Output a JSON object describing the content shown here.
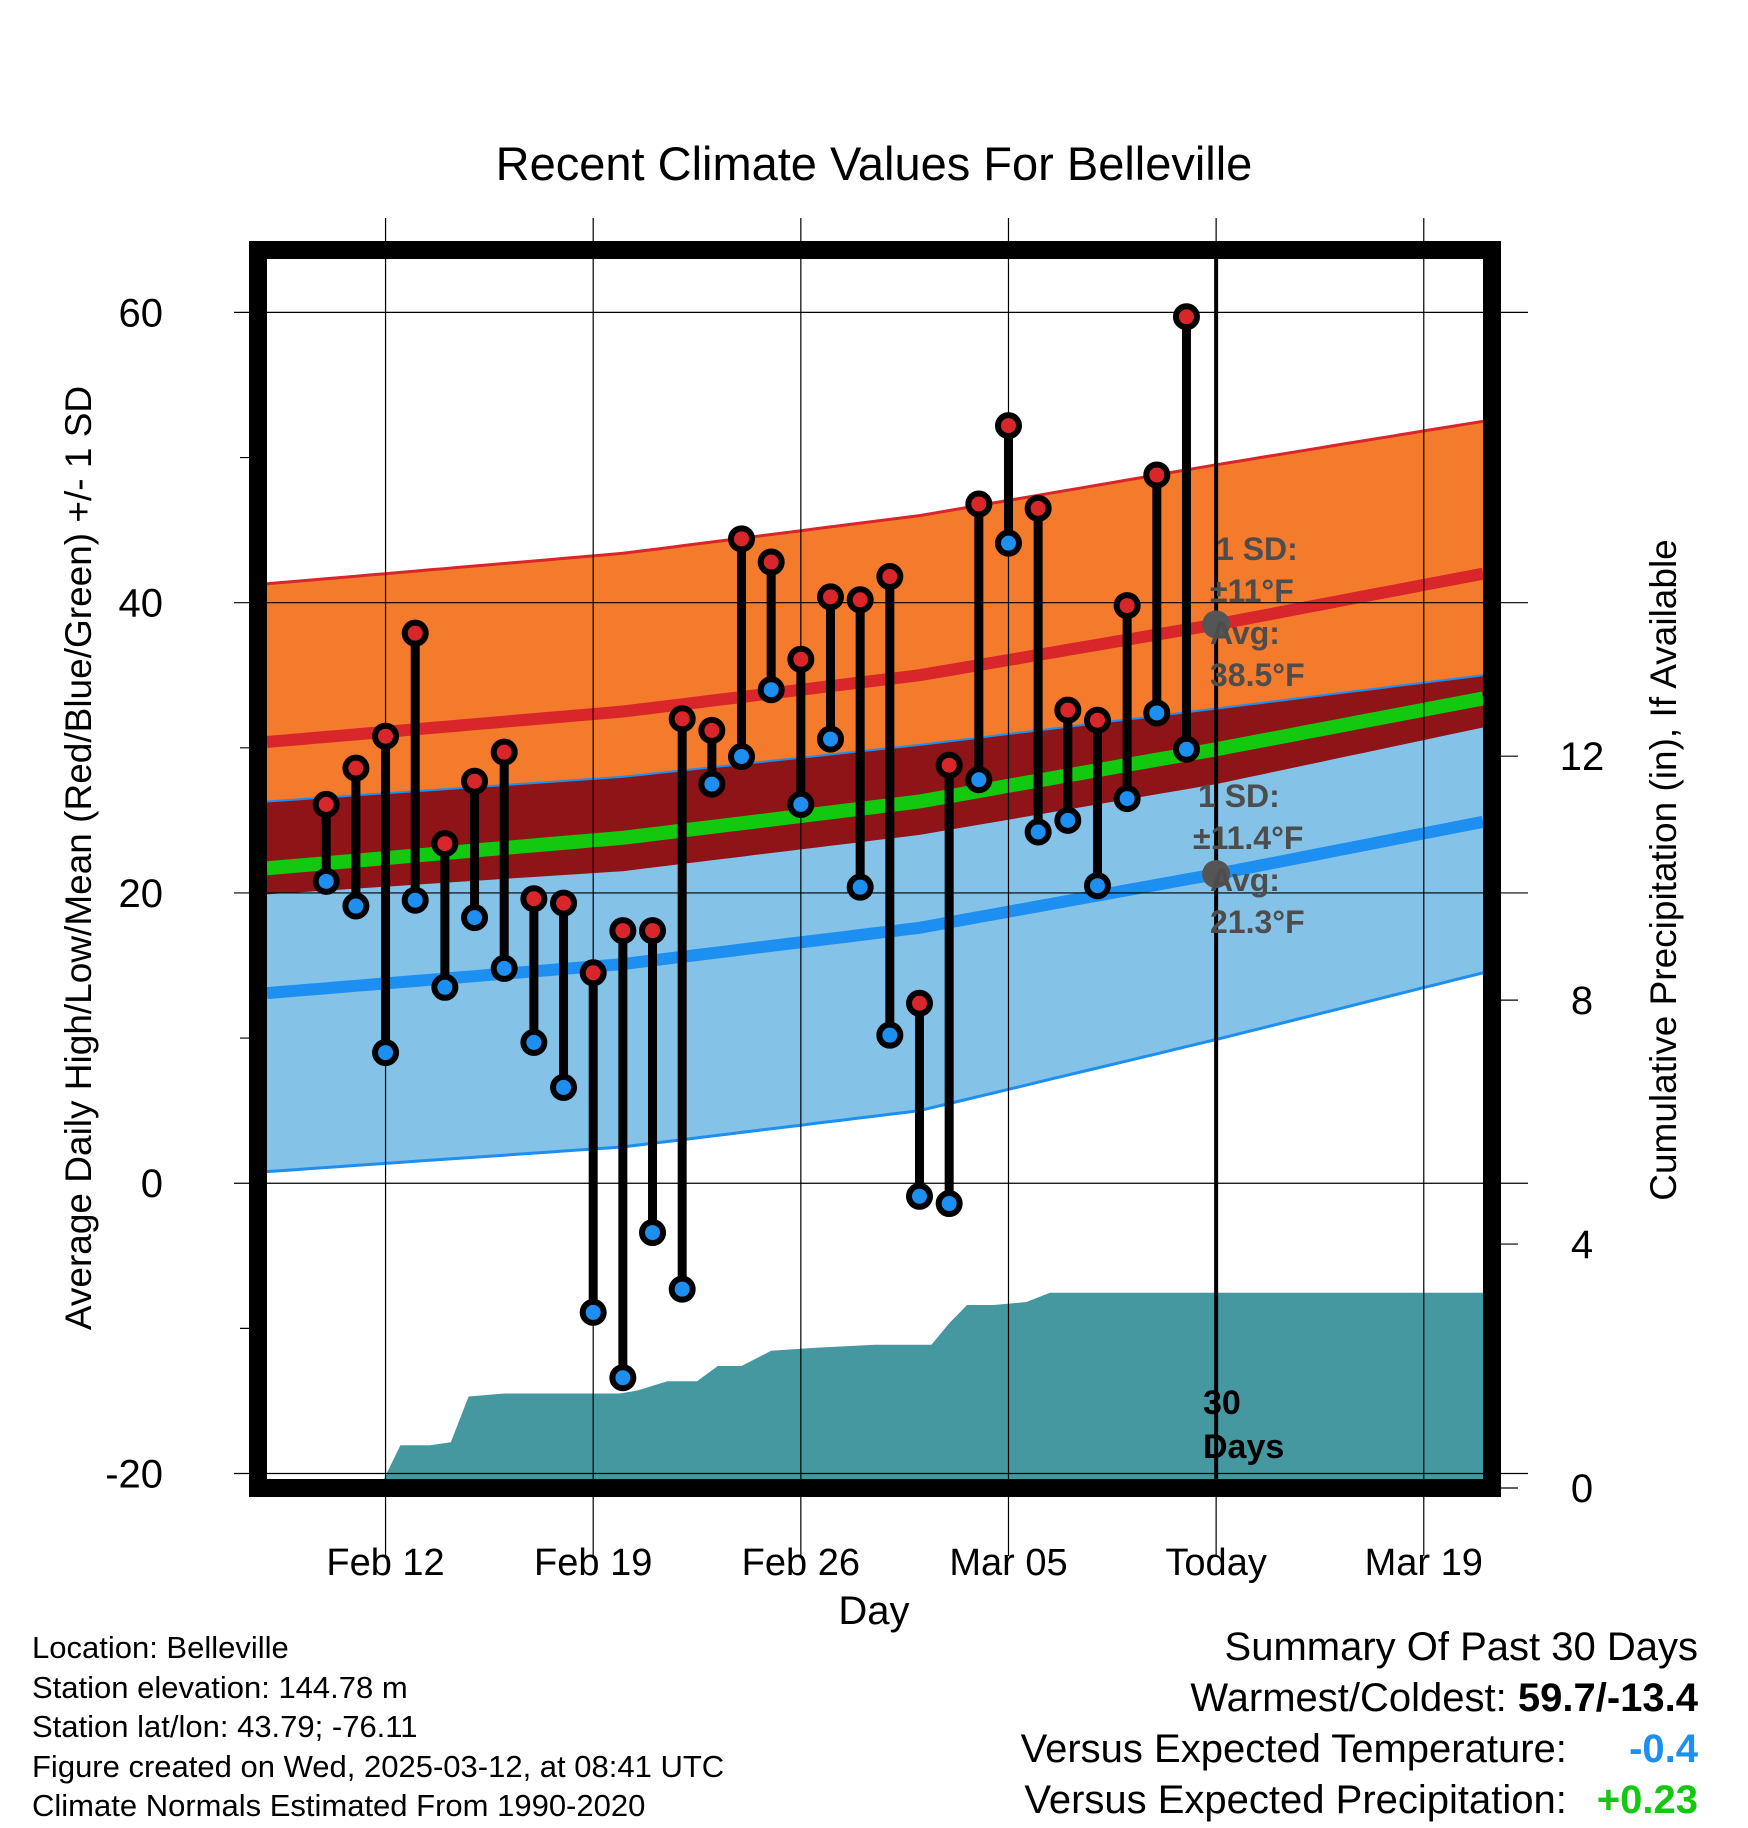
{
  "chart_data": {
    "type": "range-dot",
    "title": "Recent Climate Values For Belleville",
    "xlabel": "Day",
    "ylabel_left": "Average Daily High/Low/Mean (Red/Blue/Green) +/- 1 SD",
    "ylabel_right": "Cumulative Precipitation (in), If Available",
    "x_ticks": [
      "Feb 12",
      "Feb 19",
      "Feb 26",
      "Mar 05",
      "Today",
      "Mar 19"
    ],
    "y_ticks_left": [
      "60",
      "40",
      "20",
      "0",
      "-20"
    ],
    "y_ticks_right": [
      "12",
      "8",
      "4",
      "0"
    ],
    "ylim_left": [
      -21,
      64.3
    ],
    "ylim_right": [
      0,
      20.3
    ],
    "xlim_days": [
      -32.3,
      9.3
    ],
    "grid": true,
    "today_marker_label": "30\nDays",
    "days": [
      -30,
      -29,
      -28,
      -27,
      -26,
      -25,
      -24,
      -23,
      -22,
      -21,
      -20,
      -19,
      -18,
      -17,
      -16,
      -15,
      -14,
      -13,
      -12,
      -11,
      -10,
      -9,
      -8,
      -7,
      -6,
      -5,
      -4,
      -3,
      -2,
      -1
    ],
    "highs": [
      26.1,
      28.6,
      30.8,
      37.9,
      23.4,
      27.7,
      29.7,
      19.6,
      19.3,
      14.5,
      17.4,
      17.4,
      32.0,
      31.2,
      44.4,
      42.8,
      36.1,
      40.4,
      40.2,
      41.8,
      12.4,
      28.8,
      46.8,
      52.2,
      46.5,
      32.6,
      31.9,
      39.8,
      48.8,
      59.7
    ],
    "lows": [
      20.8,
      19.1,
      9.0,
      19.5,
      13.5,
      18.3,
      14.8,
      9.7,
      6.6,
      -8.9,
      -13.4,
      -3.4,
      -7.3,
      27.5,
      29.4,
      34.0,
      26.1,
      30.6,
      20.4,
      10.2,
      -0.9,
      -1.4,
      27.8,
      44.1,
      24.2,
      25.0,
      20.5,
      26.5,
      32.4,
      29.9
    ],
    "normals": {
      "x": [
        -32,
        -20,
        -10,
        0,
        9
      ],
      "high_avg": [
        30.4,
        32.5,
        35.0,
        38.5,
        42.0
      ],
      "high_upper": [
        41.3,
        43.4,
        46.0,
        49.5,
        52.5
      ],
      "low_avg": [
        13.1,
        15.1,
        17.6,
        21.3,
        24.9
      ],
      "low_upper": [
        26.3,
        28.0,
        30.2,
        32.7,
        35.0
      ],
      "low_lower": [
        0.8,
        2.5,
        5.0,
        9.9,
        14.5
      ],
      "mean_avg": [
        21.7,
        23.8,
        26.3,
        29.9,
        33.4
      ],
      "high_lower": [
        19.9,
        21.5,
        24.0,
        27.5,
        31.4
      ]
    },
    "precip_cumulative": [
      [
        -28.2,
        0.0
      ],
      [
        -27.5,
        0.7
      ],
      [
        -26.5,
        0.7
      ],
      [
        -25.8,
        0.75
      ],
      [
        -25.2,
        1.5
      ],
      [
        -24,
        1.55
      ],
      [
        -22,
        1.55
      ],
      [
        -20.1,
        1.55
      ],
      [
        -19.5,
        1.6
      ],
      [
        -18.5,
        1.75
      ],
      [
        -17.5,
        1.75
      ],
      [
        -16.8,
        2.0
      ],
      [
        -16,
        2.0
      ],
      [
        -15,
        2.25
      ],
      [
        -13.5,
        2.3
      ],
      [
        -11.5,
        2.35
      ],
      [
        -10.5,
        2.35
      ],
      [
        -9.6,
        2.35
      ],
      [
        -9,
        2.7
      ],
      [
        -8.4,
        3.0
      ],
      [
        -7.5,
        3.0
      ],
      [
        -6.4,
        3.05
      ],
      [
        -5.6,
        3.2
      ],
      [
        -4,
        3.2
      ],
      [
        0,
        3.2
      ],
      [
        9,
        3.2
      ]
    ],
    "annotations": {
      "high_sd": "1 SD:",
      "high_sd_val": "±11°F",
      "high_avg_label": "Avg:",
      "high_avg_val": "38.5°F",
      "low_sd": "1 SD:",
      "low_sd_val": "±11.4°F",
      "low_avg_label": "Avg:",
      "low_avg_val": "21.3°F"
    },
    "colors": {
      "high_band": "#f47a2c",
      "high_line": "#d8262b",
      "low_band": "#84c2e8",
      "low_line": "#1d8ff0",
      "mean_band": "#8e1418",
      "mean_line": "#13c90f",
      "precip": "#4698a0",
      "high_dot": "#d8262b",
      "low_dot": "#1d8ff0"
    }
  },
  "info": {
    "location": "Location: Belleville",
    "elevation": "Station elevation: 144.78 m",
    "latlon": "Station lat/lon: 43.79; -76.11",
    "created": "Figure created on Wed, 2025-03-12, at 08:41 UTC",
    "normals": "Climate Normals Estimated From 1990-2020"
  },
  "summary": {
    "title": "Summary Of Past 30 Days",
    "warm_cold_label": "Warmest/Coldest:",
    "warm_cold_value": "59.7/-13.4",
    "temp_label": "Versus Expected Temperature:",
    "temp_value": "-0.4",
    "temp_color": "#1d8ff0",
    "precip_label": "Versus Expected Precipitation:",
    "precip_value": "+0.23",
    "precip_color": "#13c90f"
  }
}
